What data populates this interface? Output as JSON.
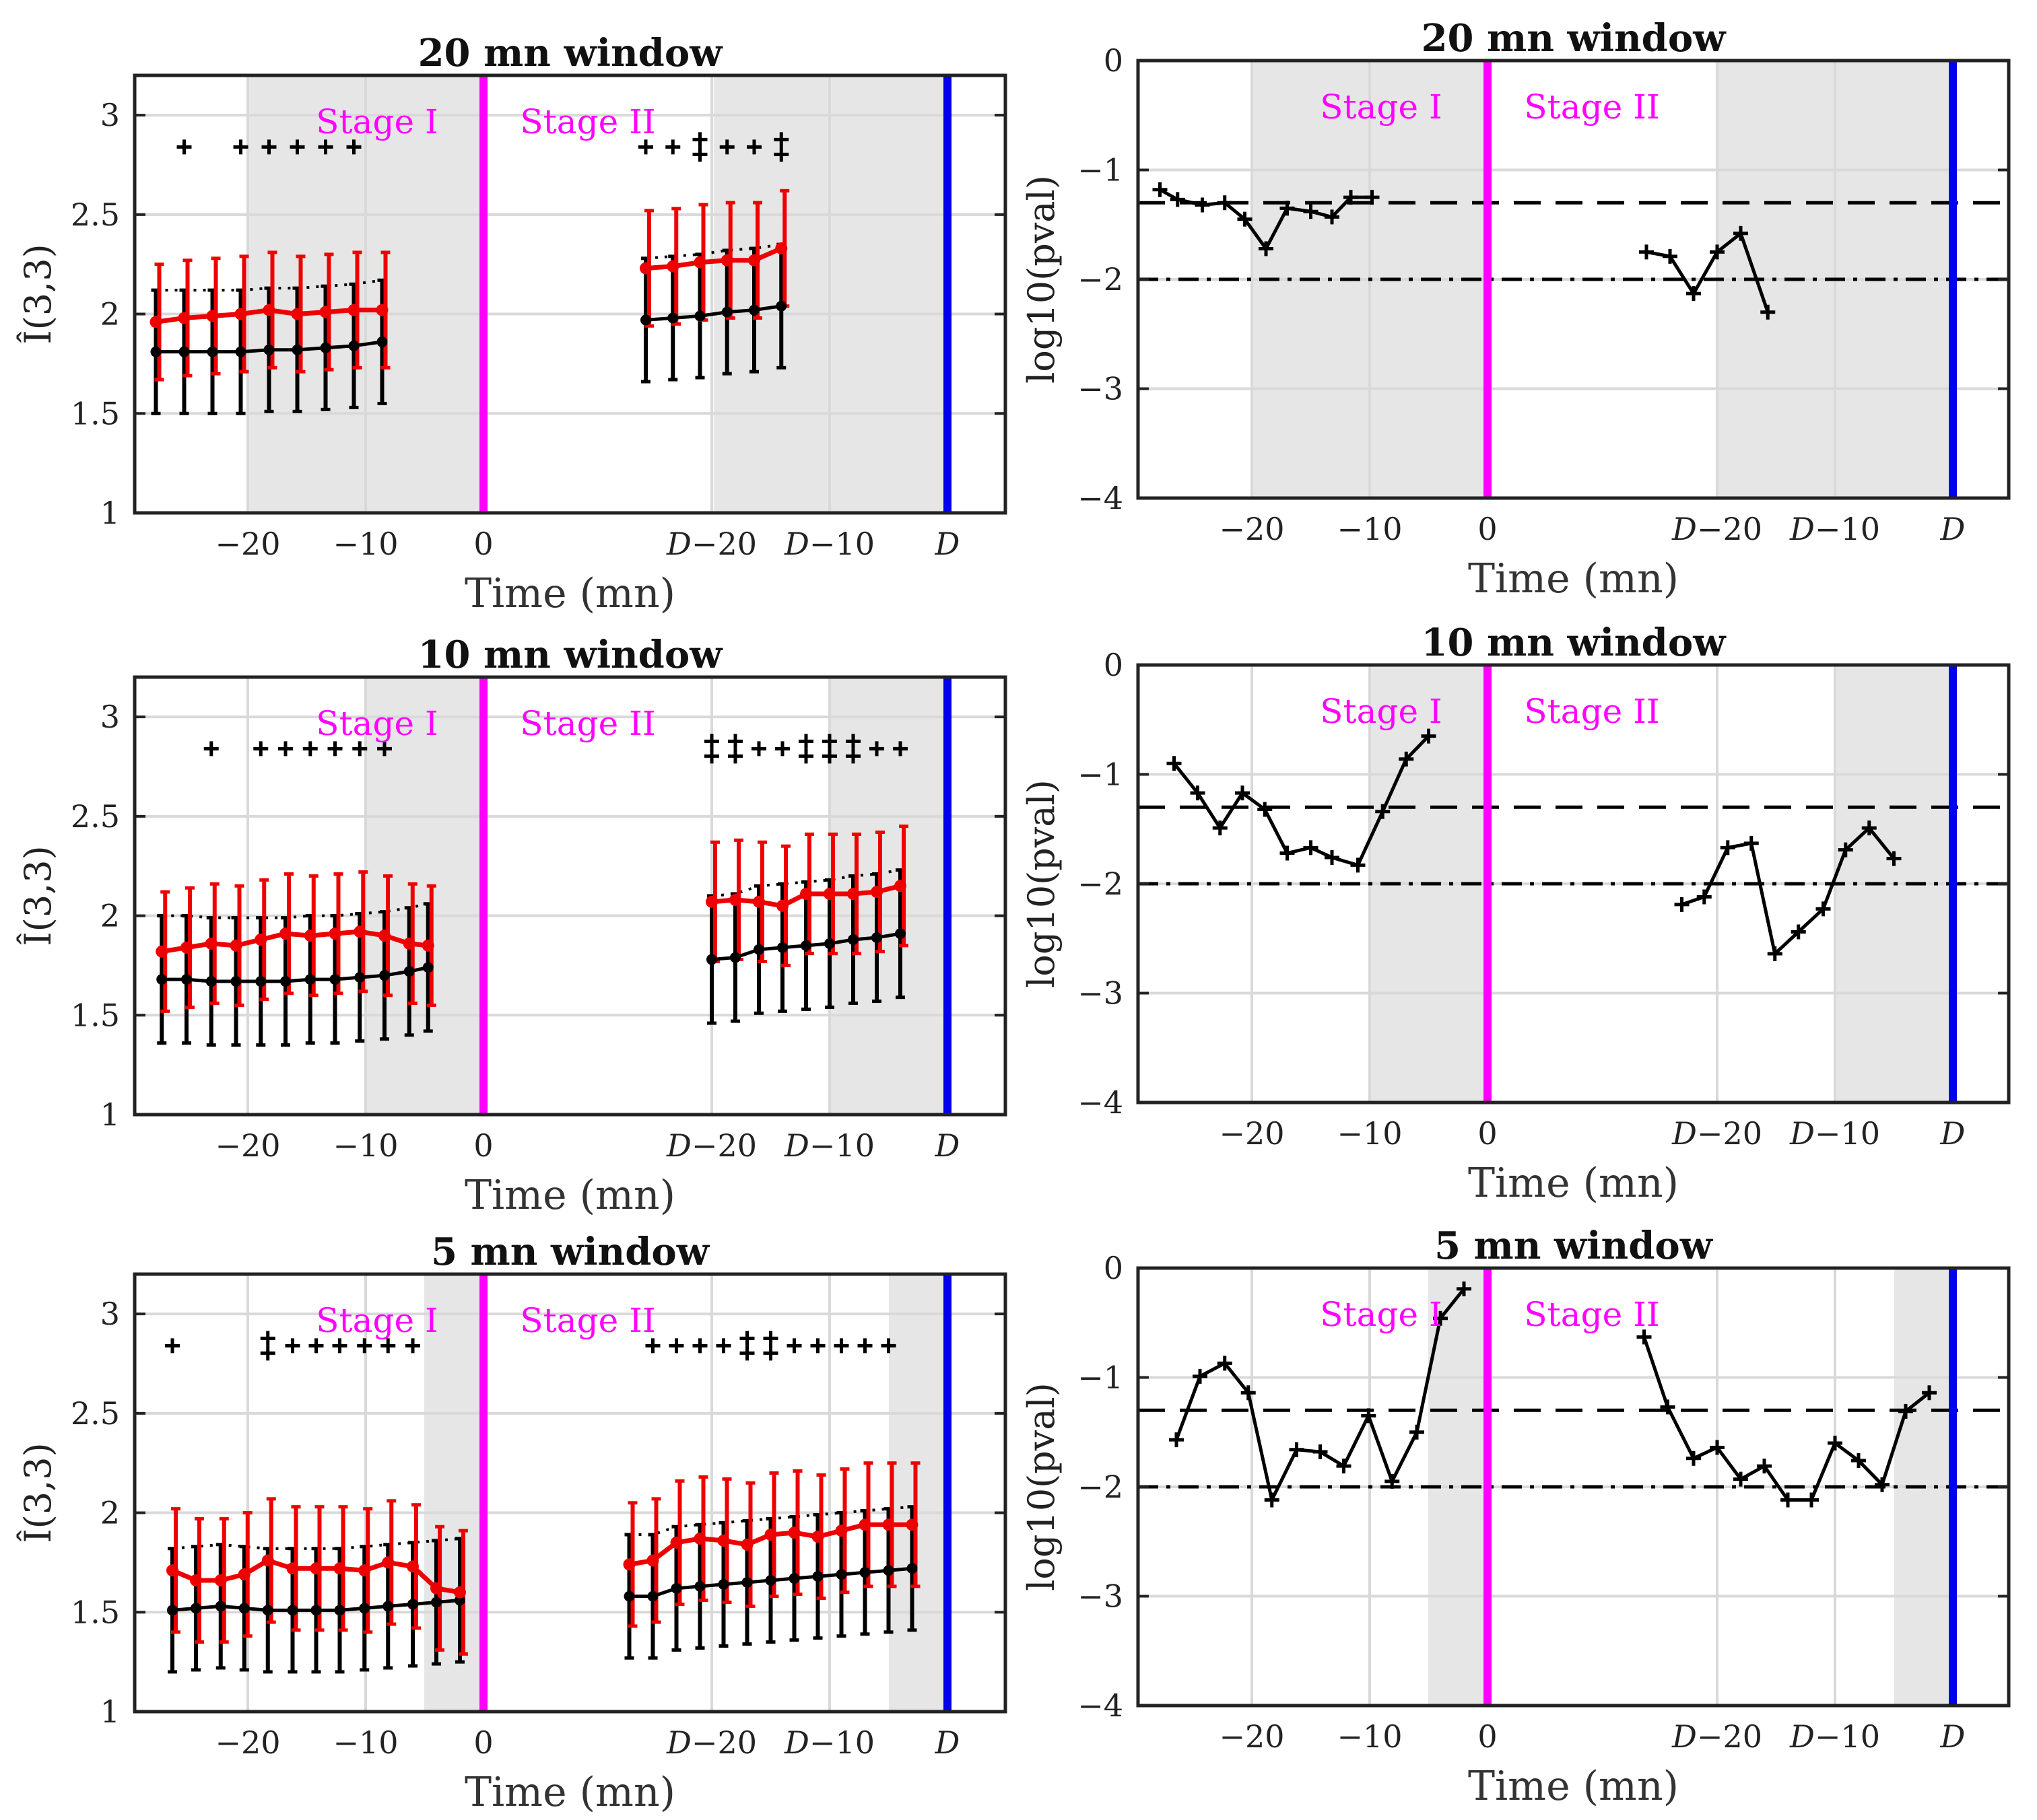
{
  "colors": {
    "stage_text": "#ff00ff",
    "zero_line": "#ff00ff",
    "d_line": "#0000ee",
    "d_tick": "#1010dd",
    "purple_tick": "#7a1fd6",
    "red_series": "#ee0000",
    "black_series": "#000000",
    "shade": "#e6e6e6",
    "grid": "#d9d9d9"
  },
  "labels": {
    "x_axis": "Time (mn)",
    "y_left": "Î(3,3)",
    "y_right": "log10(pval)",
    "stage_one": "Stage I",
    "stage_two": "Stage II"
  },
  "chart_data": [
    {
      "id": "L20",
      "type": "line",
      "title": "20 mn window",
      "ylabel": "Î(3,3)",
      "xlabel": "Time (mn)",
      "ylim": [
        1,
        3.2
      ],
      "yticks": [
        1,
        1.5,
        2,
        2.5,
        3
      ],
      "yticklabels": [
        "1",
        "1.5",
        "2",
        "2.5",
        "3"
      ],
      "xticks": [
        "−20",
        "−10",
        "0",
        "D−20",
        "D−10",
        "D"
      ],
      "stages": [
        "Stage I",
        "Stage II"
      ],
      "shaded": [
        "stage I: −20 to 0",
        "stage II: D−20 to D"
      ],
      "series": [
        {
          "name": "red",
          "t1": [
            -27.8,
            -25.4,
            -23,
            -20.6,
            -18.2,
            -15.8,
            -13.4,
            -11,
            -8.6
          ],
          "y1": [
            1.96,
            1.98,
            1.99,
            2.0,
            2.02,
            2.0,
            2.01,
            2.02,
            2.02
          ],
          "t2": [
            -25.6,
            -23.3,
            -21,
            -18.7,
            -16.4,
            -14.1
          ],
          "y2": [
            2.23,
            2.24,
            2.26,
            2.27,
            2.27,
            2.33
          ],
          "err": 0.29
        },
        {
          "name": "black",
          "t1": [
            -27.8,
            -25.4,
            -23,
            -20.6,
            -18.2,
            -15.8,
            -13.4,
            -11,
            -8.6
          ],
          "y1": [
            1.81,
            1.81,
            1.81,
            1.81,
            1.82,
            1.82,
            1.83,
            1.84,
            1.86
          ],
          "t2": [
            -25.6,
            -23.3,
            -21,
            -18.7,
            -16.4,
            -14.1
          ],
          "y2": [
            1.97,
            1.98,
            1.99,
            2.01,
            2.02,
            2.04
          ],
          "err": 0.31
        }
      ],
      "markers": [
        {
          "t": -25.4,
          "n": 1
        },
        {
          "t": -20.6,
          "n": 1
        },
        {
          "t": -18.2,
          "n": 1
        },
        {
          "t": -15.8,
          "n": 1
        },
        {
          "t": -13.4,
          "n": 1
        },
        {
          "t": -11,
          "n": 1
        }
      ],
      "markers2": [
        {
          "t": -25.6,
          "n": 1
        },
        {
          "t": -23.3,
          "n": 1
        },
        {
          "t": -21,
          "n": 2
        },
        {
          "t": -18.7,
          "n": 1
        },
        {
          "t": -16.4,
          "n": 1
        },
        {
          "t": -14.1,
          "n": 2
        }
      ]
    },
    {
      "id": "R20",
      "type": "line",
      "title": "20 mn window",
      "ylabel": "log10(pval)",
      "xlabel": "Time (mn)",
      "ylim": [
        -4,
        0
      ],
      "yticks": [
        -4,
        -3,
        -2,
        -1,
        0
      ],
      "yticklabels": [
        "−4",
        "−3",
        "−2",
        "−1",
        "0"
      ],
      "xticks": [
        "−20",
        "−10",
        "0",
        "D−20",
        "D−10",
        "D"
      ],
      "stages": [
        "Stage I",
        "Stage II"
      ],
      "reference_lines": [
        -1.3,
        -2
      ],
      "t1": [
        -27.8,
        -26.3,
        -24.2,
        -22.3,
        -20.6,
        -18.8,
        -17,
        -15,
        -13.2,
        -11.6,
        -9.8
      ],
      "y1": [
        -1.18,
        -1.27,
        -1.32,
        -1.3,
        -1.45,
        -1.72,
        -1.35,
        -1.38,
        -1.43,
        -1.25,
        -1.25
      ],
      "t2": [
        -26,
        -24,
        -22,
        -20,
        -18,
        -15.7
      ],
      "y2": [
        -1.75,
        -1.79,
        -2.13,
        -1.75,
        -1.58,
        -2.3
      ]
    },
    {
      "id": "L10",
      "type": "line",
      "title": "10 mn window",
      "ylabel": "Î(3,3)",
      "xlabel": "Time (mn)",
      "ylim": [
        1,
        3.2
      ],
      "yticks": [
        1,
        1.5,
        2,
        2.5,
        3
      ],
      "yticklabels": [
        "1",
        "1.5",
        "2",
        "2.5",
        "3"
      ],
      "xticks": [
        "−20",
        "−10",
        "0",
        "D−20",
        "D−10",
        "D"
      ],
      "stages": [
        "Stage I",
        "Stage II"
      ],
      "shaded": [
        "stage I: −10 to 0",
        "stage II: D−10 to D"
      ],
      "series": [
        {
          "name": "red",
          "t1": [
            -27.3,
            -25.2,
            -23.1,
            -21,
            -18.9,
            -16.8,
            -14.7,
            -12.6,
            -10.5,
            -8.4,
            -6.3,
            -4.7
          ],
          "y1": [
            1.82,
            1.84,
            1.86,
            1.85,
            1.88,
            1.91,
            1.9,
            1.91,
            1.92,
            1.9,
            1.86,
            1.85
          ],
          "t2": [
            -20,
            -18,
            -16,
            -14,
            -12,
            -10,
            -8,
            -6,
            -4
          ],
          "y2": [
            2.07,
            2.08,
            2.07,
            2.05,
            2.11,
            2.11,
            2.11,
            2.12,
            2.15
          ],
          "err": 0.3
        },
        {
          "name": "black",
          "t1": [
            -27.3,
            -25.2,
            -23.1,
            -21,
            -18.9,
            -16.8,
            -14.7,
            -12.6,
            -10.5,
            -8.4,
            -6.3,
            -4.7
          ],
          "y1": [
            1.68,
            1.68,
            1.67,
            1.67,
            1.67,
            1.67,
            1.68,
            1.68,
            1.69,
            1.7,
            1.72,
            1.74
          ],
          "t2": [
            -20,
            -18,
            -16,
            -14,
            -12,
            -10,
            -8,
            -6,
            -4
          ],
          "y2": [
            1.78,
            1.79,
            1.83,
            1.84,
            1.85,
            1.86,
            1.88,
            1.89,
            1.91
          ],
          "err": 0.32
        }
      ],
      "markers": [
        {
          "t": -23.1,
          "n": 1
        },
        {
          "t": -18.9,
          "n": 1
        },
        {
          "t": -16.8,
          "n": 1
        },
        {
          "t": -14.7,
          "n": 1
        },
        {
          "t": -12.6,
          "n": 1
        },
        {
          "t": -10.5,
          "n": 1
        },
        {
          "t": -8.4,
          "n": 1
        }
      ],
      "markers2": [
        {
          "t": -20,
          "n": 2
        },
        {
          "t": -18,
          "n": 2
        },
        {
          "t": -16,
          "n": 1
        },
        {
          "t": -14,
          "n": 1
        },
        {
          "t": -12,
          "n": 2
        },
        {
          "t": -10,
          "n": 2
        },
        {
          "t": -8,
          "n": 2
        },
        {
          "t": -6,
          "n": 1
        },
        {
          "t": -4,
          "n": 1
        }
      ]
    },
    {
      "id": "R10",
      "type": "line",
      "title": "10 mn window",
      "ylabel": "log10(pval)",
      "xlabel": "Time (mn)",
      "ylim": [
        -4,
        0
      ],
      "yticks": [
        -4,
        -3,
        -2,
        -1,
        0
      ],
      "yticklabels": [
        "−4",
        "−3",
        "−2",
        "−1",
        "0"
      ],
      "xticks": [
        "−20",
        "−10",
        "0",
        "D−20",
        "D−10",
        "D"
      ],
      "stages": [
        "Stage I",
        "Stage II"
      ],
      "reference_lines": [
        -1.3,
        -2
      ],
      "t1": [
        -26.6,
        -24.6,
        -22.7,
        -20.8,
        -18.9,
        -17,
        -15,
        -13.2,
        -11,
        -8.9,
        -6.9,
        -5
      ],
      "y1": [
        -0.9,
        -1.17,
        -1.49,
        -1.17,
        -1.32,
        -1.72,
        -1.67,
        -1.76,
        -1.83,
        -1.34,
        -0.86,
        -0.65
      ],
      "t2": [
        -23,
        -21.1,
        -19.1,
        -17.1,
        -15.1,
        -13.1,
        -11,
        -9.1,
        -7.1,
        -5
      ],
      "y2": [
        -2.19,
        -2.12,
        -1.67,
        -1.63,
        -2.64,
        -2.44,
        -2.23,
        -1.69,
        -1.49,
        -1.77
      ]
    },
    {
      "id": "L5",
      "type": "line",
      "title": "5 mn window",
      "ylabel": "Î(3,3)",
      "xlabel": "Time (mn)",
      "ylim": [
        1,
        3.2
      ],
      "yticks": [
        1,
        1.5,
        2,
        2.5,
        3
      ],
      "yticklabels": [
        "1",
        "1.5",
        "2",
        "2.5",
        "3"
      ],
      "xticks": [
        "−20",
        "−10",
        "0",
        "D−20",
        "D−10",
        "D"
      ],
      "stages": [
        "Stage I",
        "Stage II"
      ],
      "shaded": [
        "stage I: −5 to 0",
        "stage II: D−5 to D"
      ],
      "series": [
        {
          "name": "red",
          "t1": [
            -26.4,
            -24.4,
            -22.3,
            -20.3,
            -18.3,
            -16.2,
            -14.2,
            -12.2,
            -10.1,
            -8.1,
            -6,
            -4,
            -2
          ],
          "y1": [
            1.71,
            1.66,
            1.66,
            1.69,
            1.76,
            1.72,
            1.72,
            1.72,
            1.71,
            1.75,
            1.73,
            1.62,
            1.6
          ],
          "t2": [
            -27,
            -25,
            -23,
            -21,
            -19,
            -17,
            -15,
            -13,
            -11,
            -9,
            -7,
            -5,
            -3
          ],
          "y2": [
            1.74,
            1.76,
            1.85,
            1.87,
            1.86,
            1.84,
            1.89,
            1.9,
            1.88,
            1.91,
            1.94,
            1.94,
            1.94
          ],
          "err": 0.31
        },
        {
          "name": "black",
          "t1": [
            -26.4,
            -24.4,
            -22.3,
            -20.3,
            -18.3,
            -16.2,
            -14.2,
            -12.2,
            -10.1,
            -8.1,
            -6,
            -4,
            -2
          ],
          "y1": [
            1.51,
            1.52,
            1.53,
            1.52,
            1.51,
            1.51,
            1.51,
            1.51,
            1.52,
            1.53,
            1.54,
            1.55,
            1.56
          ],
          "t2": [
            -27,
            -25,
            -23,
            -21,
            -19,
            -17,
            -15,
            -13,
            -11,
            -9,
            -7,
            -5,
            -3
          ],
          "y2": [
            1.58,
            1.58,
            1.62,
            1.63,
            1.64,
            1.65,
            1.66,
            1.67,
            1.68,
            1.69,
            1.7,
            1.71,
            1.72
          ],
          "err": 0.31
        }
      ],
      "markers": [
        {
          "t": -26.4,
          "n": 1
        },
        {
          "t": -18.3,
          "n": 2
        },
        {
          "t": -16.2,
          "n": 1
        },
        {
          "t": -14.2,
          "n": 1
        },
        {
          "t": -12.2,
          "n": 1
        },
        {
          "t": -10.1,
          "n": 1
        },
        {
          "t": -8.1,
          "n": 1
        },
        {
          "t": -6,
          "n": 1
        }
      ],
      "markers2": [
        {
          "t": -25,
          "n": 1
        },
        {
          "t": -23,
          "n": 1
        },
        {
          "t": -21,
          "n": 1
        },
        {
          "t": -19,
          "n": 1
        },
        {
          "t": -17,
          "n": 2
        },
        {
          "t": -15,
          "n": 2
        },
        {
          "t": -13,
          "n": 1
        },
        {
          "t": -11,
          "n": 1
        },
        {
          "t": -9,
          "n": 1
        },
        {
          "t": -7,
          "n": 1
        },
        {
          "t": -5,
          "n": 1
        }
      ]
    },
    {
      "id": "R5",
      "type": "line",
      "title": "5 mn window",
      "ylabel": "log10(pval)",
      "xlabel": "Time (mn)",
      "ylim": [
        -4,
        0
      ],
      "yticks": [
        -4,
        -3,
        -2,
        -1,
        0
      ],
      "yticklabels": [
        "−4",
        "−3",
        "−2",
        "−1",
        "0"
      ],
      "xticks": [
        "−20",
        "−10",
        "0",
        "D−20",
        "D−10",
        "D"
      ],
      "stages": [
        "Stage I",
        "Stage II"
      ],
      "reference_lines": [
        -1.3,
        -2
      ],
      "t1": [
        -26.4,
        -24.4,
        -22.3,
        -20.3,
        -18.3,
        -16.2,
        -14.2,
        -12.2,
        -10.1,
        -8.1,
        -6,
        -4,
        -2
      ],
      "y1": [
        -1.57,
        -0.99,
        -0.87,
        -1.14,
        -2.12,
        -1.66,
        -1.68,
        -1.81,
        -1.35,
        -1.95,
        -1.5,
        -0.46,
        -0.19
      ],
      "t2": [
        -26.2,
        -24.2,
        -22,
        -20,
        -18,
        -16,
        -14,
        -12,
        -10,
        -8,
        -6,
        -4,
        -2
      ],
      "y2": [
        -0.63,
        -1.27,
        -1.74,
        -1.64,
        -1.93,
        -1.81,
        -2.12,
        -2.12,
        -1.6,
        -1.76,
        -1.98,
        -1.31,
        -1.14
      ]
    }
  ]
}
